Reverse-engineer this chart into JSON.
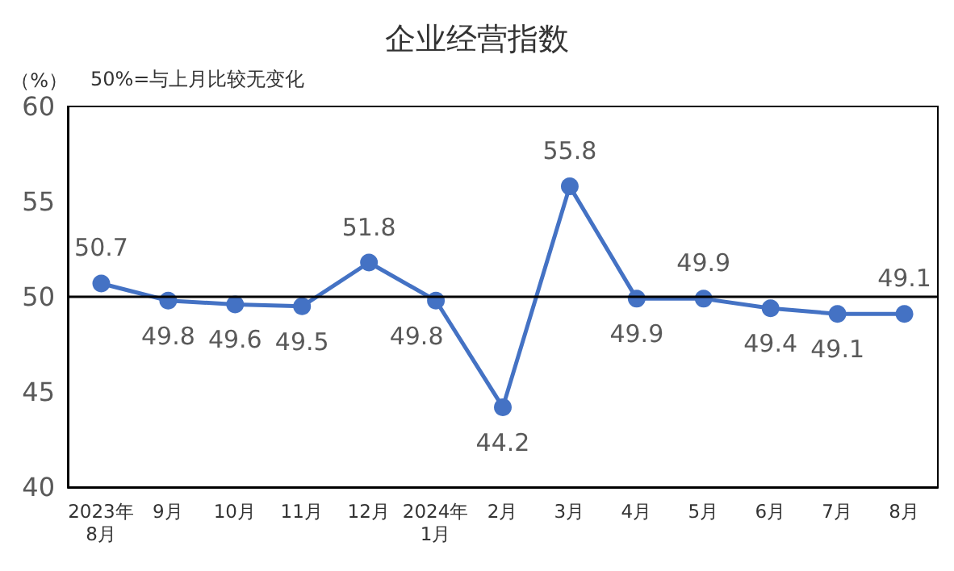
{
  "chart_data": {
    "type": "line",
    "title": "企业经营指数",
    "ylabel": "（%）",
    "annotations": [
      "50%=与上月比较无变化"
    ],
    "categories": [
      "2023年\n8月",
      "9月",
      "10月",
      "11月",
      "12月",
      "2024年\n1月",
      "2月",
      "3月",
      "4月",
      "5月",
      "6月",
      "7月",
      "8月"
    ],
    "series": [
      {
        "color": "#4472c4",
        "values": [
          50.7,
          49.8,
          49.6,
          49.5,
          51.8,
          49.8,
          44.2,
          55.8,
          49.9,
          49.9,
          49.4,
          49.1,
          49.1
        ]
      }
    ],
    "ylim": [
      40,
      60
    ],
    "yticks": [
      40,
      45,
      50,
      55,
      60
    ],
    "ref_lines": [
      {
        "axis": "y",
        "value": 50,
        "color": "#000000"
      }
    ],
    "data_labels": true,
    "grid": false,
    "marker": "circle",
    "line_style": "solid"
  }
}
